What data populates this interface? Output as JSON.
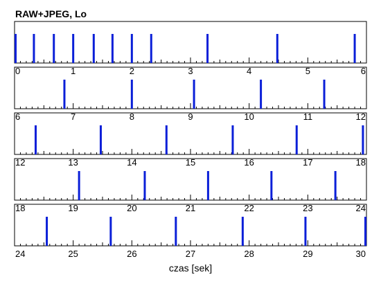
{
  "chart_data": {
    "type": "timeline",
    "title": "RAW+JPEG, Lo",
    "xlabel": "czas [sek]",
    "panels": [
      {
        "xlim": [
          0,
          6
        ],
        "tick_labels": [
          "0",
          "1",
          "2",
          "3",
          "4",
          "5",
          "6"
        ],
        "events": [
          0.0,
          0.33,
          0.67,
          1.0,
          1.35,
          1.67,
          2.0,
          2.33,
          3.29,
          4.48,
          5.8
        ]
      },
      {
        "xlim": [
          6,
          12
        ],
        "tick_labels": [
          "6",
          "7",
          "8",
          "9",
          "10",
          "11",
          "12"
        ],
        "events": [
          6.85,
          8.0,
          9.06,
          10.2,
          11.28
        ]
      },
      {
        "xlim": [
          12,
          18
        ],
        "tick_labels": [
          "12",
          "13",
          "14",
          "15",
          "16",
          "17",
          "18"
        ],
        "events": [
          12.36,
          13.47,
          14.59,
          15.72,
          16.81,
          17.94
        ]
      },
      {
        "xlim": [
          18,
          24
        ],
        "tick_labels": [
          "18",
          "19",
          "20",
          "21",
          "22",
          "23",
          "24"
        ],
        "events": [
          19.1,
          20.22,
          21.3,
          22.38,
          23.47
        ]
      },
      {
        "xlim": [
          24,
          30
        ],
        "tick_labels": [
          "24",
          "25",
          "26",
          "27",
          "28",
          "29",
          "30"
        ],
        "events": [
          24.55,
          25.64,
          26.75,
          27.89,
          28.96,
          30.0
        ]
      }
    ],
    "colors": {
      "event": "#0a1fd8",
      "axis": "#000000"
    }
  }
}
